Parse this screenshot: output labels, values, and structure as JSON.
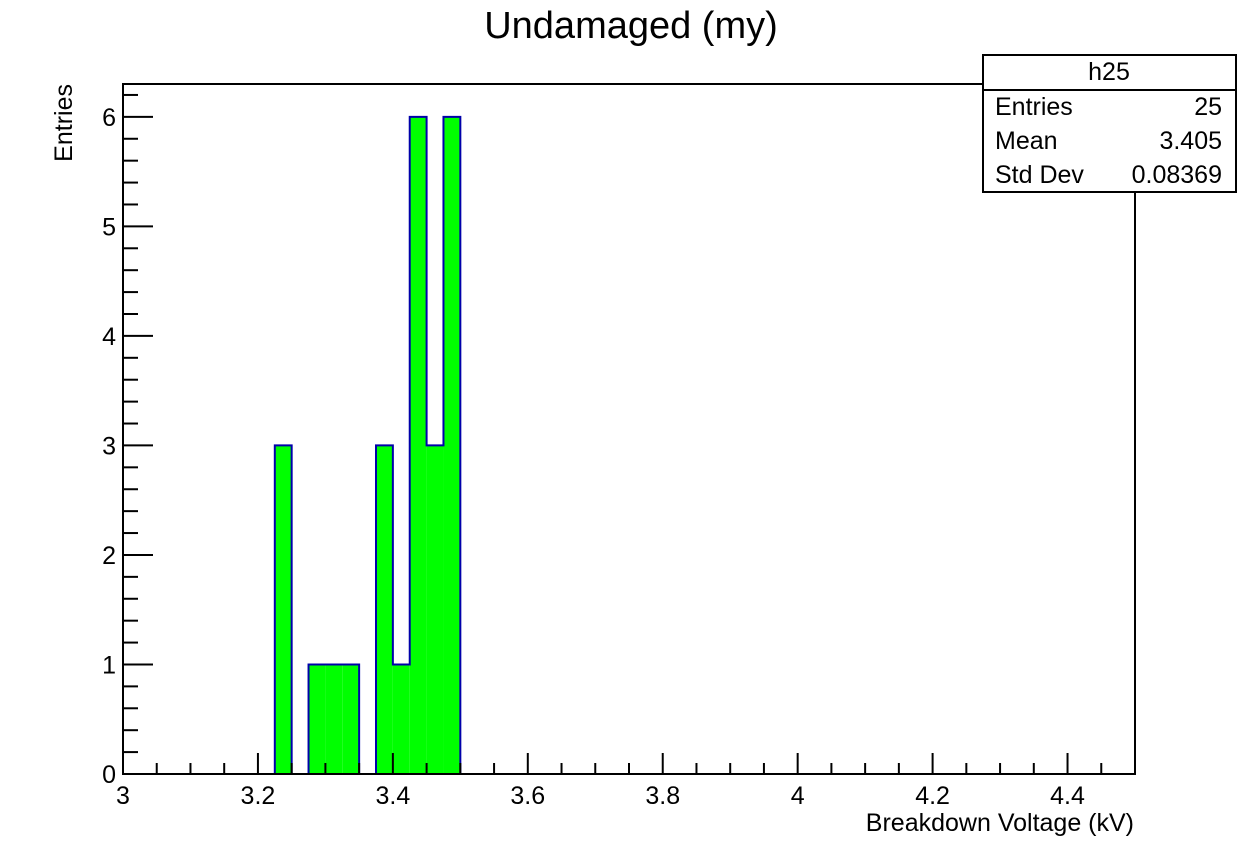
{
  "chart_data": {
    "type": "bar",
    "title": "Undamaged (my)",
    "xlabel": "Breakdown Voltage (kV)",
    "ylabel": "Entries",
    "xlim": [
      3.0,
      4.5
    ],
    "ylim": [
      0,
      6.3
    ],
    "x_ticks": [
      "3",
      "3.2",
      "3.4",
      "3.6",
      "3.8",
      "4",
      "4.2",
      "4.4"
    ],
    "y_ticks": [
      "0",
      "1",
      "2",
      "3",
      "4",
      "5",
      "6"
    ],
    "bin_width": 0.025,
    "bins": [
      {
        "low": 3.225,
        "high": 3.25,
        "count": 3
      },
      {
        "low": 3.275,
        "high": 3.3,
        "count": 1
      },
      {
        "low": 3.3,
        "high": 3.325,
        "count": 1
      },
      {
        "low": 3.325,
        "high": 3.35,
        "count": 1
      },
      {
        "low": 3.375,
        "high": 3.4,
        "count": 3
      },
      {
        "low": 3.4,
        "high": 3.425,
        "count": 1
      },
      {
        "low": 3.425,
        "high": 3.45,
        "count": 6
      },
      {
        "low": 3.45,
        "high": 3.475,
        "count": 3
      },
      {
        "low": 3.475,
        "high": 3.5,
        "count": 6
      }
    ],
    "fill_color": "#00ff00",
    "line_color": "#0000aa",
    "grid": false,
    "legend": "top-right",
    "stats_box": {
      "name": "h25",
      "rows": [
        {
          "label": "Entries",
          "value": "25"
        },
        {
          "label": "Mean",
          "value": "3.405"
        },
        {
          "label": "Std Dev",
          "value": "0.08369"
        }
      ]
    }
  }
}
